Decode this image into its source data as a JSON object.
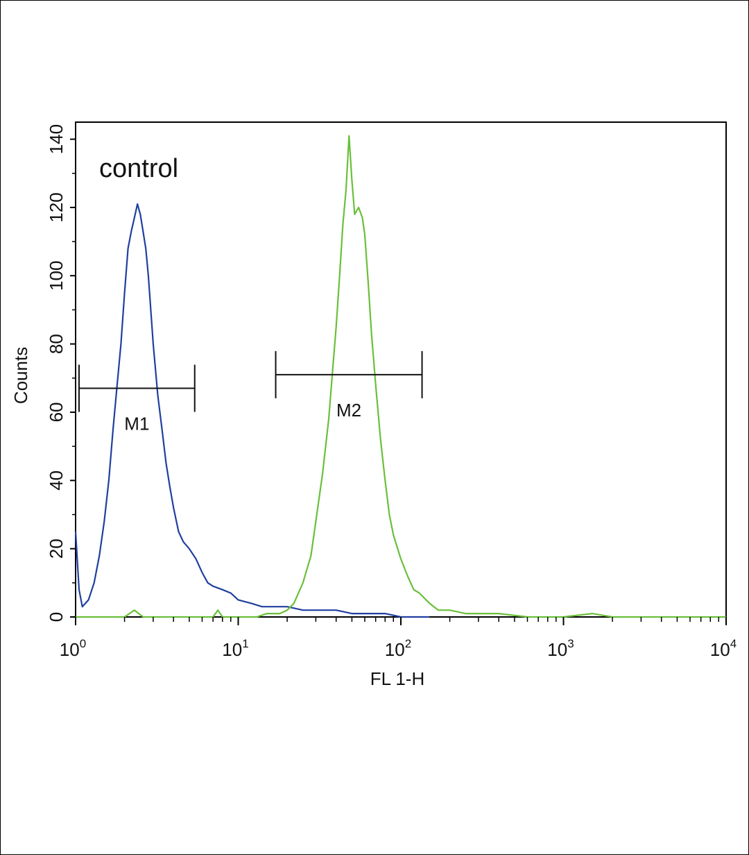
{
  "chart_data": {
    "type": "line",
    "title": "",
    "xlabel": "FL 1-H",
    "ylabel": "Counts",
    "x_scale": "log",
    "xlim": [
      1,
      10000
    ],
    "ylim": [
      0,
      145
    ],
    "x_ticks": [
      {
        "value": 1,
        "base": "10",
        "exp": "0"
      },
      {
        "value": 10,
        "base": "10",
        "exp": "1"
      },
      {
        "value": 100,
        "base": "10",
        "exp": "2"
      },
      {
        "value": 1000,
        "base": "10",
        "exp": "3"
      },
      {
        "value": 10000,
        "base": "10",
        "exp": "4"
      }
    ],
    "y_ticks": [
      0,
      20,
      40,
      60,
      80,
      100,
      120,
      140
    ],
    "grid": false,
    "annotation": "control",
    "series": [
      {
        "color": "#1f3f9f",
        "x": [
          1.0,
          1.05,
          1.1,
          1.2,
          1.3,
          1.4,
          1.5,
          1.6,
          1.7,
          1.8,
          1.9,
          2.0,
          2.1,
          2.2,
          2.3,
          2.4,
          2.5,
          2.6,
          2.7,
          2.8,
          2.9,
          3.0,
          3.2,
          3.4,
          3.6,
          3.8,
          4.0,
          4.3,
          4.6,
          5.0,
          5.5,
          6.0,
          6.5,
          7.0,
          8.0,
          9.0,
          10,
          12,
          14,
          17,
          20,
          25,
          30,
          40,
          50,
          60,
          70,
          80,
          100,
          130,
          150
        ],
        "y": [
          25,
          8,
          3,
          5,
          10,
          18,
          28,
          40,
          55,
          68,
          80,
          95,
          108,
          113,
          117,
          121,
          118,
          113,
          108,
          100,
          90,
          80,
          65,
          55,
          45,
          38,
          32,
          25,
          22,
          20,
          17,
          13,
          10,
          9,
          8,
          7,
          5,
          4,
          3,
          3,
          3,
          2,
          2,
          2,
          1,
          1,
          1,
          1,
          0,
          0,
          0
        ]
      },
      {
        "color": "#6abf3a",
        "x": [
          1.0,
          2.0,
          2.3,
          2.6,
          5.0,
          7.0,
          7.5,
          8.0,
          10,
          13,
          15,
          18,
          20,
          22,
          25,
          28,
          30,
          33,
          36,
          38,
          40,
          42,
          44,
          46,
          48,
          50,
          52,
          55,
          58,
          60,
          63,
          66,
          70,
          75,
          80,
          85,
          90,
          100,
          110,
          120,
          130,
          150,
          170,
          200,
          250,
          300,
          400,
          600,
          800,
          1000,
          1500,
          2000,
          5000,
          10000
        ],
        "y": [
          0,
          0,
          2,
          0,
          0,
          0,
          2,
          0,
          0,
          0,
          1,
          1,
          2,
          4,
          10,
          18,
          28,
          42,
          58,
          72,
          85,
          100,
          115,
          125,
          141,
          128,
          118,
          120,
          117,
          112,
          98,
          83,
          68,
          52,
          40,
          30,
          24,
          17,
          12,
          8,
          7,
          4,
          2,
          2,
          1,
          1,
          1,
          0,
          0,
          0,
          1,
          0,
          0,
          0
        ]
      }
    ],
    "markers": [
      {
        "label": "M1",
        "x_start": 1.05,
        "x_end": 5.4,
        "y": 67
      },
      {
        "label": "M2",
        "x_start": 17,
        "x_end": 135,
        "y": 71
      }
    ]
  }
}
